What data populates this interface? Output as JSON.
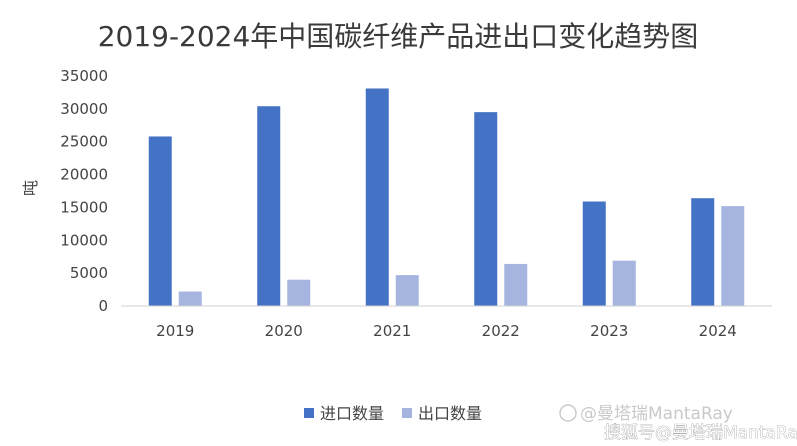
{
  "chart_data": {
    "type": "bar",
    "title": "2019-2024年中国碳纤维产品进出口变化趋势图",
    "xlabel": "",
    "ylabel": "吨",
    "categories": [
      "2019",
      "2020",
      "2021",
      "2022",
      "2023",
      "2024"
    ],
    "series": [
      {
        "name": "进口数量",
        "color": "#4472c4",
        "values": [
          25800,
          30400,
          33100,
          29500,
          15900,
          16400
        ]
      },
      {
        "name": "出口数量",
        "color": "#a5b5e0",
        "values": [
          2200,
          4000,
          4700,
          6400,
          6900,
          15200
        ]
      }
    ],
    "ylim": [
      0,
      35000
    ],
    "yticks": [
      0,
      5000,
      10000,
      15000,
      20000,
      25000,
      30000,
      35000
    ],
    "grid": false,
    "legend_position": "bottom"
  },
  "watermark": {
    "line1": "@曼塔瑞MantaRay",
    "line2": "搜狐号@曼塔瑞MantaRay"
  }
}
